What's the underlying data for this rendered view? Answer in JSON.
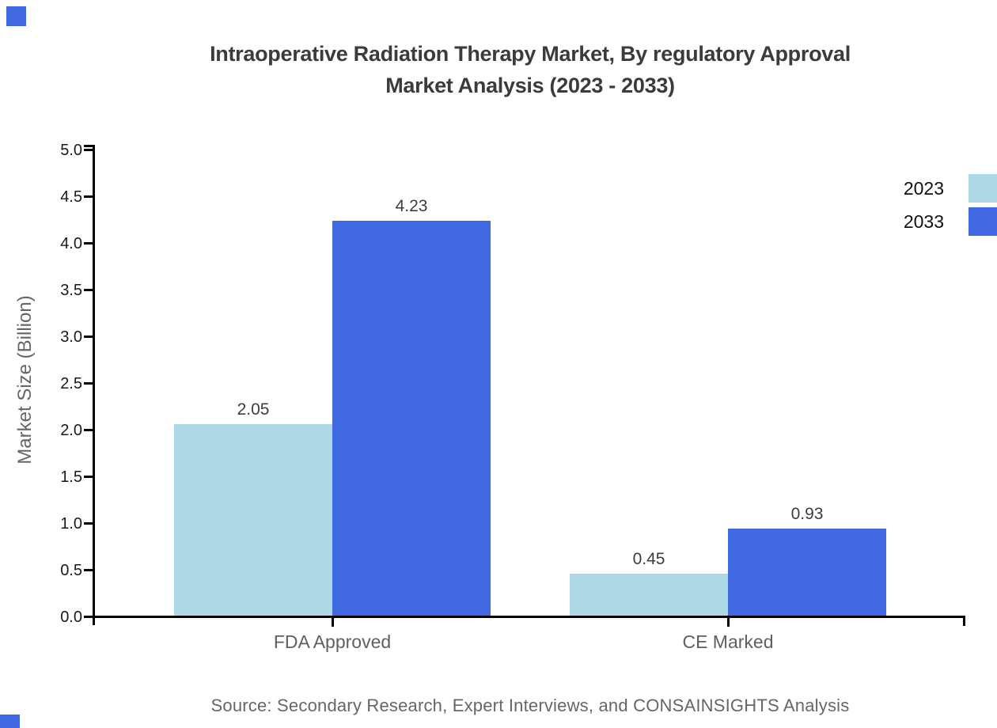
{
  "title": {
    "line1": "Intraoperative Radiation Therapy Market, By regulatory Approval",
    "line2": "Market Analysis (2023 - 2033)"
  },
  "y_axis": {
    "label": "Market Size (Billion)",
    "tick_labels": [
      "0.0",
      "0.5",
      "1.0",
      "1.5",
      "2.0",
      "2.5",
      "3.0",
      "3.5",
      "4.0",
      "4.5",
      "5.0"
    ]
  },
  "source": "Source: Secondary Research, Expert Interviews, and CONSAINSIGHTS Analysis",
  "chart_data": {
    "type": "bar",
    "title": "Intraoperative Radiation Therapy Market, By regulatory Approval Market Analysis (2023 - 2033)",
    "categories": [
      "FDA Approved",
      "CE Marked"
    ],
    "series": [
      {
        "name": "2023",
        "color": "#ADD8E6",
        "values": [
          2.05,
          0.45
        ]
      },
      {
        "name": "2033",
        "color": "#4169E1",
        "values": [
          4.23,
          0.93
        ]
      }
    ],
    "value_labels": [
      [
        "2.05",
        "0.45"
      ],
      [
        "4.23",
        "0.93"
      ]
    ],
    "xlabel": "",
    "ylabel": "Market Size (Billion)",
    "ylim": [
      0,
      5
    ],
    "ytick_step": 0.5,
    "grid": false,
    "legend_position": "top-right"
  }
}
